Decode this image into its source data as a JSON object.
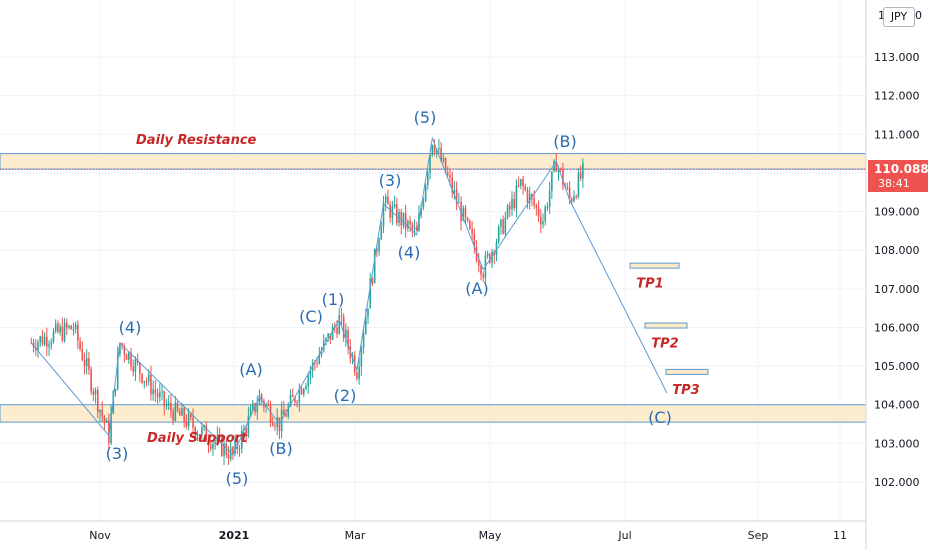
{
  "currency": "JPY",
  "current_price": "110.088",
  "countdown": "38:41",
  "chart_data": {
    "type": "candlestick",
    "y_ticks": [
      "113.000",
      "112.000",
      "111.000",
      "110.000",
      "109.000",
      "108.000",
      "107.000",
      "106.000",
      "105.000",
      "104.000",
      "103.000",
      "102.000"
    ],
    "ylim": [
      101.0,
      114.2
    ],
    "x_ticks": [
      "Nov",
      "2021",
      "Mar",
      "May",
      "Jul",
      "Sep",
      "11"
    ],
    "zones": [
      {
        "name": "Daily Resistance",
        "low": 110.1,
        "high": 110.5,
        "label": "Daily Resistance"
      },
      {
        "name": "Daily Support",
        "low": 103.55,
        "high": 104.0,
        "label": "Daily Support"
      }
    ],
    "targets": [
      {
        "label": "TP1",
        "price": 107.6
      },
      {
        "label": "TP2",
        "price": 106.05
      },
      {
        "label": "TP3",
        "price": 104.85
      }
    ],
    "wave_labels": [
      "(3)",
      "(4)",
      "(5)",
      "(A)",
      "(B)",
      "(C)",
      "(1)",
      "(2)",
      "(3)",
      "(4)",
      "(5)",
      "(A)",
      "(B)",
      "(C)"
    ],
    "wave_path": [
      [
        "2020-10-01",
        105.6
      ],
      [
        "2020-11-05",
        103.2
      ],
      [
        "2020-11-10",
        105.6
      ],
      [
        "2020-12-31",
        102.7
      ],
      [
        "2021-01-12",
        104.2
      ],
      [
        "2021-01-21",
        103.5
      ],
      [
        "2021-02-17",
        106.2
      ],
      [
        "2021-02-25",
        104.9
      ],
      [
        "2021-03-09",
        109.2
      ],
      [
        "2021-03-24",
        108.4
      ],
      [
        "2021-03-31",
        110.9
      ],
      [
        "2021-04-23",
        107.5
      ],
      [
        "2021-05-26",
        110.3
      ],
      [
        "2021-06-01",
        109.3
      ],
      [
        "2021-07-15",
        104.3
      ]
    ]
  }
}
